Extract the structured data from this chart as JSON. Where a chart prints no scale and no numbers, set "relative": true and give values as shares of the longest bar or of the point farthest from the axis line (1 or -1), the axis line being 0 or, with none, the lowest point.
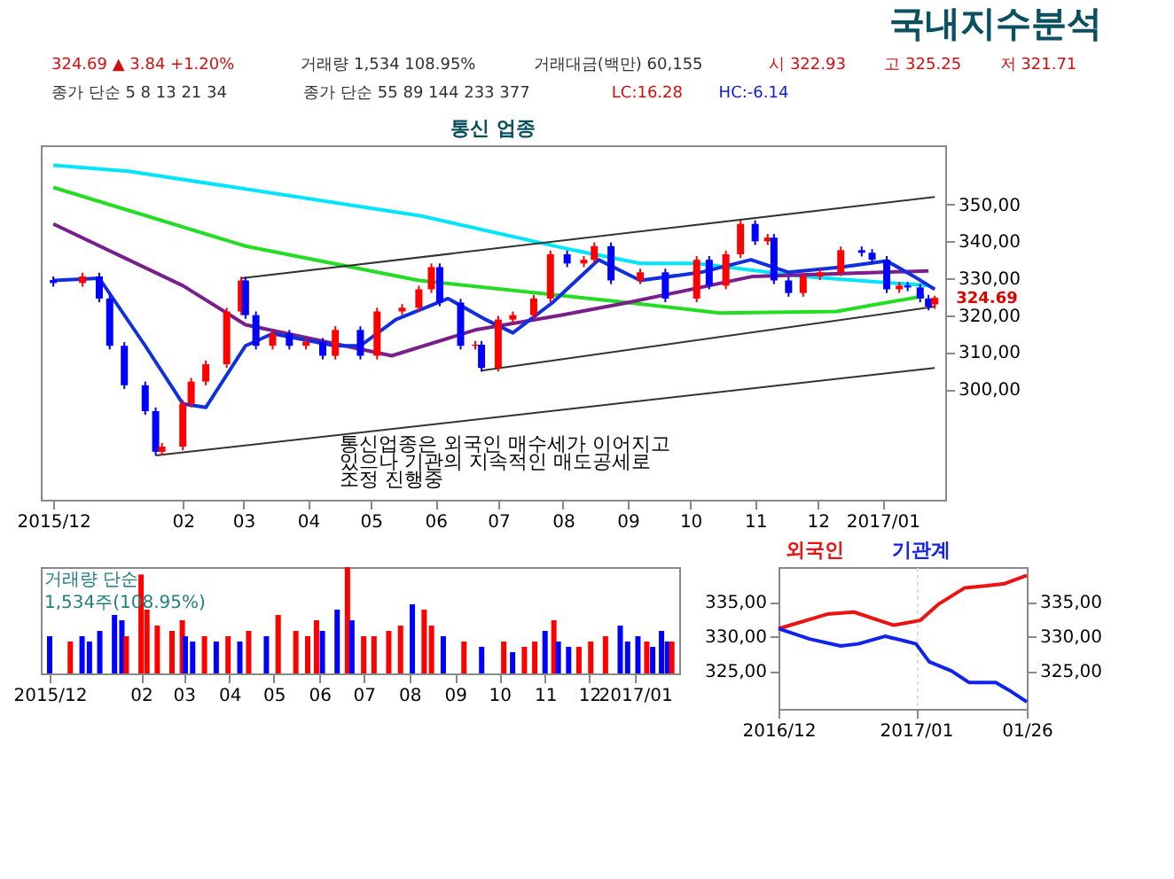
{
  "chart_data": [
    {
      "type": "candlestick",
      "title": "국내지수분석",
      "subtitle": "통신 업종",
      "x": [
        "2015-12-01",
        "2015-12-15",
        "2015-12-23",
        "2015-12-28",
        "2016-01-04",
        "2016-01-14",
        "2016-01-19",
        "2016-01-22",
        "2016-02-01",
        "2016-02-05",
        "2016-02-12",
        "2016-02-22",
        "2016-02-29",
        "2016-03-02",
        "2016-03-07",
        "2016-03-15",
        "2016-03-23",
        "2016-03-31",
        "2016-04-08",
        "2016-04-14",
        "2016-04-26",
        "2016-05-04",
        "2016-05-16",
        "2016-05-24",
        "2016-05-30",
        "2016-06-03",
        "2016-06-13",
        "2016-06-20",
        "2016-06-23",
        "2016-07-01",
        "2016-07-08",
        "2016-07-18",
        "2016-07-26",
        "2016-08-03",
        "2016-08-11",
        "2016-08-16",
        "2016-08-24",
        "2016-09-07",
        "2016-09-19",
        "2016-10-04",
        "2016-10-10",
        "2016-10-18",
        "2016-10-25",
        "2016-11-01",
        "2016-11-07",
        "2016-11-10",
        "2016-11-17",
        "2016-11-24",
        "2016-12-02",
        "2016-12-12",
        "2016-12-22",
        "2016-12-27",
        "2017-01-03",
        "2017-01-09",
        "2017-01-13",
        "2017-01-19",
        "2017-01-23",
        "2017-01-26"
      ],
      "ohlc": [
        [
          329.5,
          330.5,
          327.7,
          328.7
        ],
        [
          328.7,
          331.5,
          327.7,
          330.5
        ],
        [
          330.5,
          331.5,
          323.5,
          324.5
        ],
        [
          324.5,
          325.5,
          310.7,
          311.7
        ],
        [
          311.7,
          312.7,
          300.0,
          301.0
        ],
        [
          301.0,
          302.0,
          293.0,
          294.0
        ],
        [
          294.0,
          295.0,
          282.0,
          283.0
        ],
        [
          283.0,
          285.4,
          282.0,
          284.4
        ],
        [
          284.4,
          297.0,
          283.4,
          296.0
        ],
        [
          296.0,
          303.0,
          295.0,
          302.0
        ],
        [
          302.0,
          307.7,
          301.0,
          306.7
        ],
        [
          306.7,
          322.0,
          305.7,
          321.0
        ],
        [
          321.0,
          330.4,
          320.0,
          329.4
        ],
        [
          329.4,
          330.4,
          319.0,
          320.0
        ],
        [
          320.0,
          321.0,
          310.7,
          311.7
        ],
        [
          311.7,
          316.0,
          310.7,
          315.0
        ],
        [
          315.0,
          316.0,
          310.7,
          311.7
        ],
        [
          311.7,
          313.8,
          310.7,
          312.8
        ],
        [
          312.8,
          313.8,
          308.0,
          309.0
        ],
        [
          309.0,
          317.0,
          308.0,
          316.0
        ],
        [
          316.0,
          317.0,
          308.0,
          309.0
        ],
        [
          309.0,
          322.0,
          308.0,
          321.0
        ],
        [
          321.0,
          323.0,
          320.0,
          322.0
        ],
        [
          322.0,
          328.0,
          321.0,
          327.0
        ],
        [
          327.0,
          334.0,
          326.0,
          333.0
        ],
        [
          333.0,
          334.0,
          322.4,
          323.4
        ],
        [
          323.4,
          324.4,
          310.7,
          311.7
        ],
        [
          311.7,
          313.0,
          310.7,
          312.0
        ],
        [
          312.0,
          313.0,
          304.7,
          305.7
        ],
        [
          305.7,
          319.8,
          304.7,
          318.8
        ],
        [
          318.8,
          321.0,
          317.8,
          320.0
        ],
        [
          320.0,
          325.5,
          319.0,
          324.5
        ],
        [
          324.5,
          337.5,
          323.5,
          336.5
        ],
        [
          336.5,
          337.5,
          333.0,
          334.0
        ],
        [
          334.0,
          336.0,
          333.0,
          335.0
        ],
        [
          335.0,
          339.7,
          334.0,
          338.7
        ],
        [
          338.7,
          339.7,
          328.4,
          329.4
        ],
        [
          329.4,
          332.6,
          328.4,
          331.6
        ],
        [
          331.6,
          332.6,
          323.5,
          324.5
        ],
        [
          324.5,
          336.0,
          323.5,
          335.0
        ],
        [
          335.0,
          336.0,
          327.0,
          328.0
        ],
        [
          328.0,
          337.5,
          327.0,
          336.5
        ],
        [
          336.5,
          345.7,
          335.5,
          344.7
        ],
        [
          344.7,
          345.7,
          339.0,
          340.0
        ],
        [
          340.0,
          342.0,
          339.0,
          341.0
        ],
        [
          341.0,
          342.0,
          328.4,
          329.4
        ],
        [
          329.4,
          330.4,
          325.0,
          326.0
        ],
        [
          326.0,
          331.5,
          325.0,
          330.5
        ],
        [
          330.5,
          332.6,
          329.5,
          331.6
        ],
        [
          331.6,
          338.6,
          330.6,
          337.6
        ],
        [
          337.6,
          338.6,
          335.9,
          336.9
        ],
        [
          336.9,
          337.9,
          334.0,
          335.0
        ],
        [
          335.0,
          336.0,
          326.0,
          327.0
        ],
        [
          327.0,
          329.0,
          326.0,
          328.0
        ],
        [
          328.0,
          329.0,
          326.5,
          327.5
        ],
        [
          327.5,
          328.5,
          323.5,
          324.5
        ],
        [
          324.5,
          325.5,
          321.3,
          322.3
        ],
        [
          322.93,
          325.25,
          321.71,
          324.69
        ]
      ],
      "colors": [
        "#0000ff",
        "#ff0000",
        "#0000ff",
        "#0000ff",
        "#0000ff",
        "#0000ff",
        "#0000ff",
        "#ff0000",
        "#ff0000",
        "#ff0000",
        "#ff0000",
        "#ff0000",
        "#ff0000",
        "#0000ff",
        "#0000ff",
        "#ff0000",
        "#0000ff",
        "#ff0000",
        "#0000ff",
        "#ff0000",
        "#0000ff",
        "#ff0000",
        "#ff0000",
        "#ff0000",
        "#ff0000",
        "#0000ff",
        "#0000ff",
        "#ff0000",
        "#0000ff",
        "#ff0000",
        "#ff0000",
        "#ff0000",
        "#ff0000",
        "#0000ff",
        "#ff0000",
        "#ff0000",
        "#0000ff",
        "#ff0000",
        "#0000ff",
        "#ff0000",
        "#0000ff",
        "#ff0000",
        "#ff0000",
        "#0000ff",
        "#ff0000",
        "#0000ff",
        "#0000ff",
        "#ff0000",
        "#ff0000",
        "#ff0000",
        "#0000ff",
        "#0000ff",
        "#0000ff",
        "#ff0000",
        "#0000ff",
        "#0000ff",
        "#0000ff",
        "#ff0000"
      ],
      "series": [
        {
          "type": "line",
          "color": "#00e5ff",
          "x": [
            "2015-12-01",
            "2016-01-06",
            "2016-05-24",
            "2016-08-06",
            "2016-09-07",
            "2016-10-04",
            "2016-11-24",
            "2017-01-23"
          ],
          "values": [
            360.6,
            359.0,
            347.0,
            337.6,
            334.0,
            334.0,
            330.5,
            328.0
          ]
        },
        {
          "type": "line",
          "color": "#22dd22",
          "x": [
            "2015-12-01",
            "2016-03-02",
            "2016-05-24",
            "2016-09-01",
            "2016-10-15",
            "2016-12-10",
            "2017-01-21"
          ],
          "values": [
            354.6,
            338.7,
            329.4,
            323.4,
            320.6,
            321.0,
            325.2
          ]
        },
        {
          "type": "line",
          "color": "#7a1e8c",
          "x": [
            "2015-12-01",
            "2016-02-01",
            "2016-03-02",
            "2016-05-11",
            "2016-06-20",
            "2016-07-31",
            "2016-09-01",
            "2016-10-31",
            "2017-01-23"
          ],
          "values": [
            344.7,
            328.0,
            317.4,
            309.0,
            316.0,
            320.0,
            323.4,
            330.5,
            332.0
          ]
        },
        {
          "type": "line",
          "color": "#1030e0",
          "x": [
            "2015-12-01",
            "2015-12-23",
            "2016-01-14",
            "2016-02-01",
            "2016-02-12",
            "2016-03-02",
            "2016-03-15",
            "2016-04-14",
            "2016-04-26",
            "2016-05-13",
            "2016-06-07",
            "2016-06-25",
            "2016-07-08",
            "2016-07-27",
            "2016-08-18",
            "2016-09-07",
            "2016-10-06",
            "2016-10-30",
            "2016-11-17",
            "2016-12-12",
            "2017-01-03",
            "2017-01-16",
            "2017-01-26"
          ],
          "values": [
            329.4,
            330.0,
            311.7,
            296.0,
            295.0,
            311.7,
            315.0,
            311.7,
            311.7,
            318.8,
            324.5,
            318.8,
            315.2,
            323.4,
            335.0,
            329.4,
            331.6,
            335.0,
            331.6,
            333.0,
            334.7,
            330.5,
            327.0
          ]
        },
        {
          "type": "line",
          "color": "#333333",
          "x": [
            "2016-02-29",
            "2017-01-26"
          ],
          "values": [
            330.0,
            352.0
          ]
        },
        {
          "type": "line",
          "color": "#333333",
          "x": [
            "2016-06-23",
            "2017-01-26"
          ],
          "values": [
            305.0,
            322.3
          ]
        },
        {
          "type": "line",
          "color": "#333333",
          "x": [
            "2016-01-19",
            "2017-01-26"
          ],
          "values": [
            282.0,
            305.7
          ]
        }
      ],
      "xlim": [
        "2015-11-25",
        "2017-01-31"
      ],
      "ylim": [
        270,
        366
      ],
      "yticks": [
        {
          "value": 300,
          "label": "300,00"
        },
        {
          "value": 310,
          "label": "310,00"
        },
        {
          "value": 320,
          "label": "320,00"
        },
        {
          "value": 330,
          "label": "330,00"
        },
        {
          "value": 340,
          "label": "340,00"
        },
        {
          "value": 350,
          "label": "350,00"
        }
      ],
      "xticks": [
        {
          "value": "2015-12-01",
          "label": "2015/12"
        },
        {
          "value": "2016-02-01",
          "label": "02"
        },
        {
          "value": "2016-03-01",
          "label": "03"
        },
        {
          "value": "2016-04-01",
          "label": "04"
        },
        {
          "value": "2016-05-01",
          "label": "05"
        },
        {
          "value": "2016-06-01",
          "label": "06"
        },
        {
          "value": "2016-07-01",
          "label": "07"
        },
        {
          "value": "2016-08-01",
          "label": "08"
        },
        {
          "value": "2016-09-01",
          "label": "09"
        },
        {
          "value": "2016-10-01",
          "label": "10"
        },
        {
          "value": "2016-11-01",
          "label": "11"
        },
        {
          "value": "2016-12-01",
          "label": "12"
        },
        {
          "value": "2017-01-01",
          "label": "2017/01"
        }
      ],
      "annotations": [
        "324.69 ▲ 3.84 +1.20%",
        "거래량 1,534 108.95%",
        "거래대금(백만) 60,155",
        "시 322.93",
        "고 325.25",
        "저 321.71",
        "종가 단순 5 8 13 21 34",
        "종가 단순 55 89 144 233 377",
        "LC:16.28",
        "HC:-6.14",
        "통신업종은 외국인 매수세가 이어지고",
        "있으나 기관의 지속적인 매도공세로",
        "조정 진행중",
        {
          "text": "324.69",
          "x": "2017-01-26",
          "y": 324.69
        }
      ]
    },
    {
      "type": "bar",
      "relative": true,
      "x": [
        "2015-12-01",
        "2015-12-15",
        "2015-12-23",
        "2015-12-28",
        "2016-01-04",
        "2016-01-14",
        "2016-01-19",
        "2016-01-22",
        "2016-02-01",
        "2016-02-05",
        "2016-02-12",
        "2016-02-22",
        "2016-02-29",
        "2016-03-02",
        "2016-03-07",
        "2016-03-15",
        "2016-03-23",
        "2016-03-31",
        "2016-04-08",
        "2016-04-14",
        "2016-04-26",
        "2016-05-04",
        "2016-05-16",
        "2016-05-24",
        "2016-05-30",
        "2016-06-03",
        "2016-06-13",
        "2016-06-20",
        "2016-06-23",
        "2016-07-01",
        "2016-07-08",
        "2016-07-18",
        "2016-07-26",
        "2016-08-03",
        "2016-08-11",
        "2016-08-16",
        "2016-08-24",
        "2016-09-07",
        "2016-09-19",
        "2016-10-04",
        "2016-10-10",
        "2016-10-18",
        "2016-10-25",
        "2016-11-01",
        "2016-11-07",
        "2016-11-10",
        "2016-11-17",
        "2016-11-24",
        "2016-12-02",
        "2016-12-12",
        "2016-12-22",
        "2016-12-27",
        "2017-01-03",
        "2017-01-09",
        "2017-01-13",
        "2017-01-19",
        "2017-01-23",
        "2017-01-26"
      ],
      "values": [
        0.35,
        0.3,
        0.35,
        0.3,
        0.4,
        0.55,
        0.5,
        0.35,
        0.93,
        0.6,
        0.45,
        0.4,
        0.5,
        0.35,
        0.3,
        0.35,
        0.3,
        0.35,
        0.3,
        0.4,
        0.35,
        0.55,
        0.4,
        0.35,
        0.5,
        0.4,
        0.6,
        1.0,
        0.5,
        0.35,
        0.35,
        0.4,
        0.45,
        0.65,
        0.6,
        0.45,
        0.35,
        0.3,
        0.25,
        0.3,
        0.2,
        0.25,
        0.3,
        0.4,
        0.5,
        0.3,
        0.25,
        0.25,
        0.3,
        0.35,
        0.45,
        0.3,
        0.35,
        0.3,
        0.25,
        0.4,
        0.3,
        0.3
      ],
      "colors": [
        "#0000ff",
        "#ff0000",
        "#0000ff",
        "#0000ff",
        "#0000ff",
        "#0000ff",
        "#0000ff",
        "#ff0000",
        "#ff0000",
        "#ff0000",
        "#ff0000",
        "#ff0000",
        "#ff0000",
        "#0000ff",
        "#0000ff",
        "#ff0000",
        "#0000ff",
        "#ff0000",
        "#0000ff",
        "#ff0000",
        "#0000ff",
        "#ff0000",
        "#ff0000",
        "#ff0000",
        "#ff0000",
        "#0000ff",
        "#0000ff",
        "#ff0000",
        "#0000ff",
        "#ff0000",
        "#ff0000",
        "#ff0000",
        "#ff0000",
        "#0000ff",
        "#ff0000",
        "#ff0000",
        "#0000ff",
        "#ff0000",
        "#0000ff",
        "#ff0000",
        "#0000ff",
        "#ff0000",
        "#ff0000",
        "#0000ff",
        "#ff0000",
        "#0000ff",
        "#0000ff",
        "#ff0000",
        "#ff0000",
        "#ff0000",
        "#0000ff",
        "#0000ff",
        "#0000ff",
        "#ff0000",
        "#0000ff",
        "#0000ff",
        "#0000ff",
        "#ff0000"
      ],
      "xlim": [
        "2015-11-25",
        "2017-01-31"
      ],
      "xticks": [
        {
          "value": "2015-12-01",
          "label": "2015/12"
        },
        {
          "value": "2016-02-01",
          "label": "02"
        },
        {
          "value": "2016-03-01",
          "label": "03"
        },
        {
          "value": "2016-04-01",
          "label": "04"
        },
        {
          "value": "2016-05-01",
          "label": "05"
        },
        {
          "value": "2016-06-01",
          "label": "06"
        },
        {
          "value": "2016-07-01",
          "label": "07"
        },
        {
          "value": "2016-08-01",
          "label": "08"
        },
        {
          "value": "2016-09-01",
          "label": "09"
        },
        {
          "value": "2016-10-01",
          "label": "10"
        },
        {
          "value": "2016-11-01",
          "label": "11"
        },
        {
          "value": "2016-12-01",
          "label": "12"
        },
        {
          "value": "2017-01-01",
          "label": "2017/01"
        }
      ],
      "tick_labels": "x",
      "annotations": [
        "거래량 단순",
        "1,534주(108.95%)"
      ]
    },
    {
      "type": "line",
      "legend": "top",
      "series": [
        {
          "name": "외국인",
          "color": "#ee1111",
          "x": [
            "2016-12-01",
            "2016-12-12",
            "2016-12-18",
            "2016-12-25",
            "2016-12-27",
            "2017-01-02",
            "2017-01-06",
            "2017-01-12",
            "2017-01-17",
            "2017-01-21",
            "2017-01-26"
          ],
          "values": [
            331.1,
            333.2,
            333.5,
            332.0,
            331.6,
            332.3,
            334.6,
            337.0,
            337.3,
            337.6,
            338.8
          ]
        },
        {
          "name": "기관계",
          "color": "#1122ee",
          "x": [
            "2016-12-01",
            "2016-12-08",
            "2016-12-15",
            "2016-12-19",
            "2016-12-25",
            "2016-12-29",
            "2017-01-01",
            "2017-01-04",
            "2017-01-09",
            "2017-01-13",
            "2017-01-19",
            "2017-01-22",
            "2017-01-26"
          ],
          "values": [
            331.1,
            329.6,
            328.6,
            328.9,
            330.0,
            329.4,
            328.9,
            326.3,
            325.0,
            323.3,
            323.3,
            322.2,
            320.5
          ]
        }
      ],
      "xlim": [
        "2016-12-01",
        "2017-01-26"
      ],
      "ylim": [
        319.5,
        340
      ],
      "xticks": [
        {
          "value": "2016-12-01",
          "label": "2016/12"
        },
        {
          "value": "2017-01-01",
          "label": "2017/01"
        },
        {
          "value": "2017-01-26",
          "label": "01/26"
        }
      ],
      "yticks": [
        {
          "value": 325,
          "label": "325,00"
        },
        {
          "value": 330,
          "label": "330,00"
        },
        {
          "value": 335,
          "label": "335,00"
        }
      ],
      "grid": "x"
    }
  ]
}
